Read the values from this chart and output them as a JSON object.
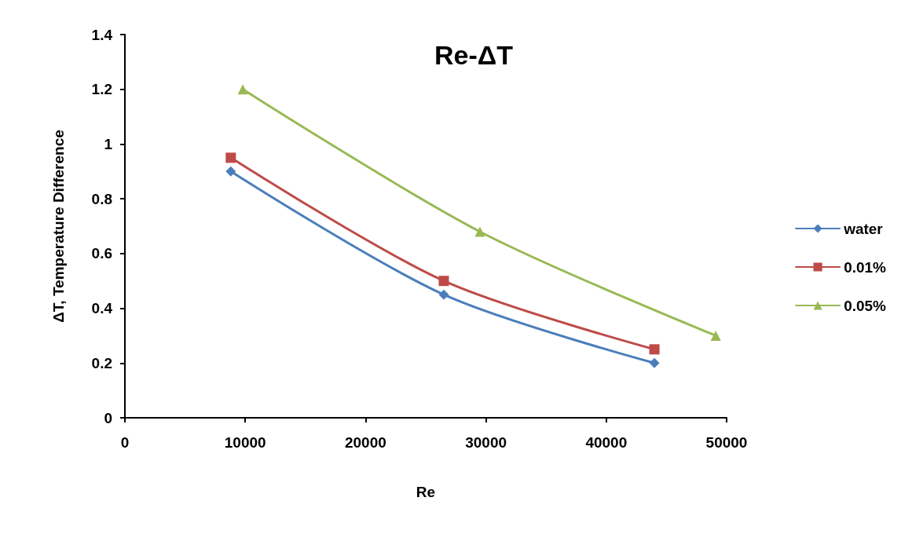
{
  "chart_data": {
    "type": "line",
    "title": "Re-ΔT",
    "xlabel": "Re",
    "ylabel": "ΔT, Temperature Difference",
    "xlim": [
      0,
      50000
    ],
    "xticks": [
      0,
      10000,
      20000,
      30000,
      40000,
      50000
    ],
    "ylim": [
      0,
      1.4
    ],
    "yticks": [
      0,
      0.2,
      0.4,
      0.6,
      0.8,
      1,
      1.2,
      1.4
    ],
    "grid": false,
    "legend": "right",
    "line_style": "solid",
    "series": [
      {
        "name": "water",
        "color": "#4a7ebb",
        "marker": "diamond",
        "x": [
          8800,
          26500,
          44000
        ],
        "values": [
          0.9,
          0.45,
          0.2
        ]
      },
      {
        "name": "0.01%",
        "color": "#be4b48",
        "marker": "square",
        "x": [
          8800,
          26500,
          44000
        ],
        "values": [
          0.95,
          0.5,
          0.25
        ]
      },
      {
        "name": "0.05%",
        "color": "#98b954",
        "marker": "triangle",
        "x": [
          9800,
          29500,
          49100
        ],
        "values": [
          1.2,
          0.68,
          0.3
        ]
      }
    ]
  }
}
